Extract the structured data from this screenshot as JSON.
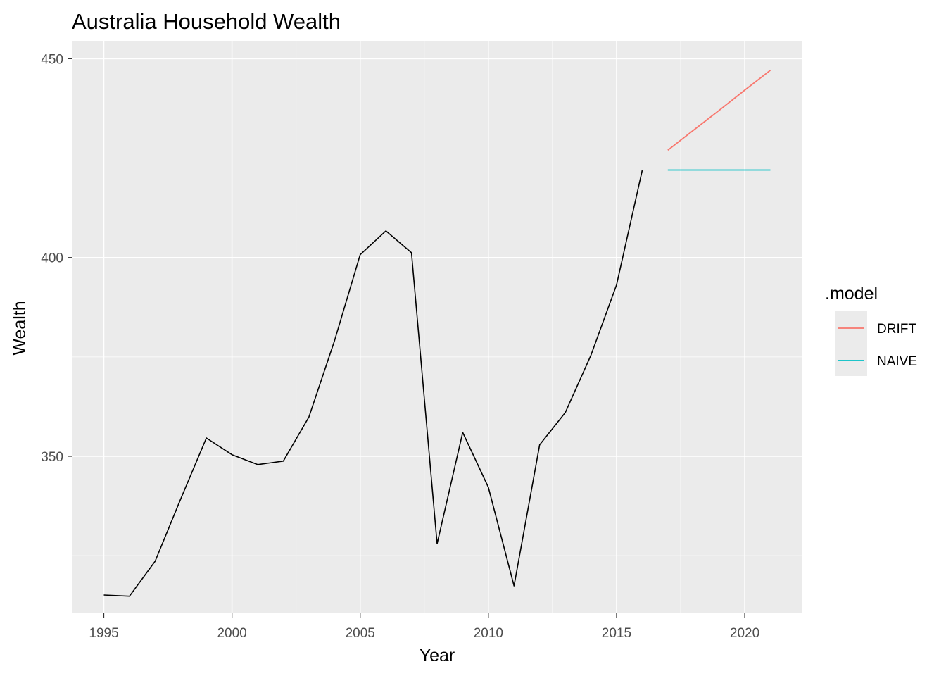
{
  "chart_data": {
    "type": "line",
    "title": "Australia Household Wealth",
    "xlabel": "Year",
    "ylabel": "Wealth",
    "xlim": [
      1993.75,
      2022.25
    ],
    "ylim": [
      310.5,
      454.5
    ],
    "x_ticks": [
      1995,
      2000,
      2005,
      2010,
      2015,
      2020
    ],
    "x_tick_labels": [
      "1995",
      "2000",
      "2005",
      "2010",
      "2015",
      "2020"
    ],
    "y_ticks": [
      350,
      400,
      450
    ],
    "y_tick_labels": [
      "350",
      "400",
      "450"
    ],
    "grid": true,
    "legend": {
      "title": ".model",
      "position": "right",
      "entries": [
        {
          "label": "DRIFT",
          "color": "#F8766D"
        },
        {
          "label": "NAIVE",
          "color": "#00BFC4"
        }
      ]
    },
    "history": {
      "color": "#000000",
      "x": [
        1995,
        1996,
        1997,
        1998,
        1999,
        2000,
        2001,
        2002,
        2003,
        2004,
        2005,
        2006,
        2007,
        2008,
        2009,
        2010,
        2011,
        2012,
        2013,
        2014,
        2015,
        2016
      ],
      "y": [
        315.1,
        314.8,
        323.6,
        339.3,
        354.6,
        350.4,
        347.9,
        348.8,
        359.9,
        379.1,
        400.7,
        406.7,
        401.2,
        328.0,
        356.0,
        342.2,
        317.4,
        352.9,
        361.0,
        375.4,
        393.1,
        421.9
      ]
    },
    "series": [
      {
        "name": "DRIFT",
        "color": "#F8766D",
        "x": [
          2017,
          2018,
          2019,
          2020,
          2021
        ],
        "y": [
          427.0,
          432.0,
          437.0,
          442.1,
          447.1
        ]
      },
      {
        "name": "NAIVE",
        "color": "#00BFC4",
        "x": [
          2017,
          2018,
          2019,
          2020,
          2021
        ],
        "y": [
          422.0,
          422.0,
          422.0,
          422.0,
          422.0
        ]
      }
    ]
  }
}
